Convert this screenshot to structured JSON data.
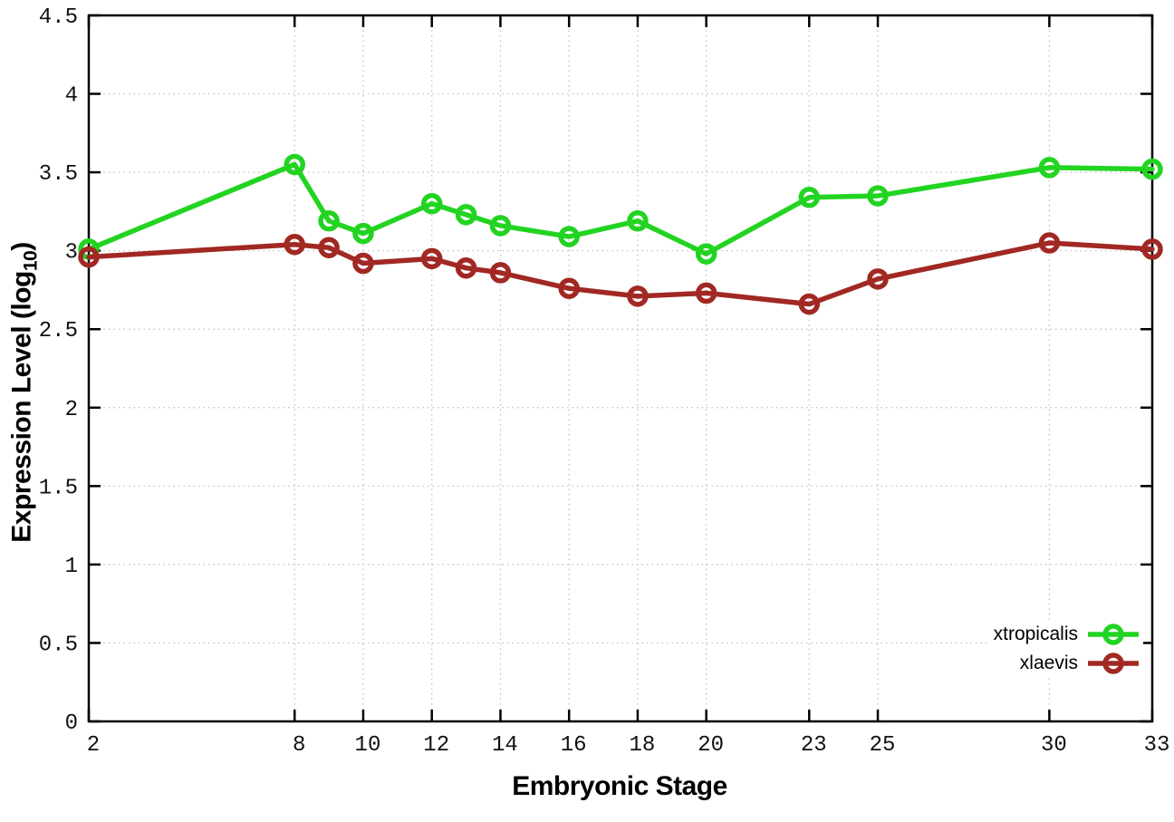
{
  "figure": {
    "background": "#ffffff",
    "y_axis": {
      "title_prefix": "Expression Level (log",
      "title_sub": "10",
      "title_suffix": ")",
      "tick_labels": [
        "0",
        "0.5",
        "1",
        "1.5",
        "2",
        "2.5",
        "3",
        "3.5",
        "4",
        "4.5"
      ]
    },
    "x_axis": {
      "title": "Embryonic Stage",
      "tick_labels": [
        "2",
        "8",
        "10",
        "12",
        "14",
        "16",
        "18",
        "20",
        "23",
        "25",
        "30",
        "33"
      ]
    },
    "colors": {
      "axis": "#000000",
      "grid": "#bcbcbc",
      "tick_text": "#111111",
      "xtropicalis": "#22d421",
      "xlaevis": "#a12823"
    }
  },
  "chart_data": {
    "type": "line",
    "title": "",
    "xlabel": "Embryonic Stage",
    "ylabel": "Expression Level (log10)",
    "x": [
      2,
      8,
      9,
      10,
      12,
      13,
      14,
      16,
      18,
      20,
      23,
      25,
      30,
      33
    ],
    "series": [
      {
        "name": "xtropicalis",
        "color": "#22d421",
        "values": [
          3.01,
          3.55,
          3.19,
          3.11,
          3.3,
          3.23,
          3.16,
          3.09,
          3.19,
          2.98,
          3.34,
          3.35,
          3.53,
          3.52
        ]
      },
      {
        "name": "xlaevis",
        "color": "#a12823",
        "values": [
          2.96,
          3.04,
          3.02,
          2.92,
          2.95,
          2.89,
          2.86,
          2.76,
          2.71,
          2.73,
          2.66,
          2.82,
          3.05,
          3.01
        ]
      }
    ],
    "xlim": [
      2,
      33
    ],
    "ylim": [
      0,
      4.5
    ],
    "x_ticks": [
      2,
      8,
      10,
      12,
      14,
      16,
      18,
      20,
      23,
      25,
      30,
      33
    ],
    "y_ticks": [
      0,
      0.5,
      1,
      1.5,
      2,
      2.5,
      3,
      3.5,
      4,
      4.5
    ],
    "grid": true,
    "grid_style": "dotted",
    "legend_position": "bottom-right",
    "marker": "open-circle",
    "line_width": 5.5,
    "marker_radius": 9
  }
}
